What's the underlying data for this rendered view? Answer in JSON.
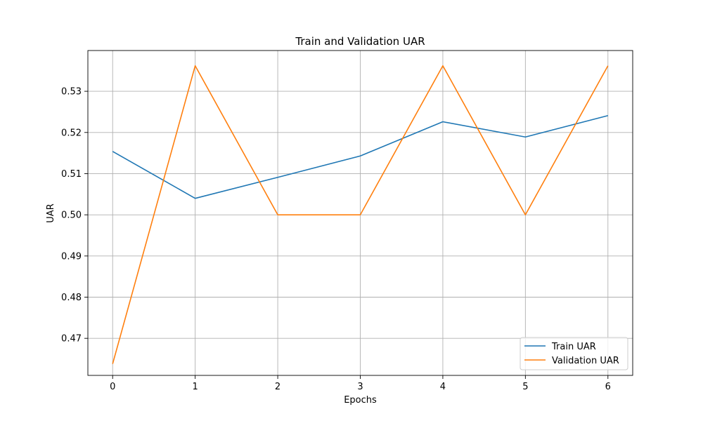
{
  "chart_data": {
    "type": "line",
    "title": "Train and Validation UAR",
    "xlabel": "Epochs",
    "ylabel": "UAR",
    "x": [
      0,
      1,
      2,
      3,
      4,
      5,
      6
    ],
    "xlim": [
      -0.3,
      6.3
    ],
    "ylim": [
      0.461,
      0.5399
    ],
    "xticks": [
      0,
      1,
      2,
      3,
      4,
      5,
      6
    ],
    "yticks": [
      0.47,
      0.48,
      0.49,
      0.5,
      0.51,
      0.52,
      0.53
    ],
    "ytick_labels": [
      "0.47",
      "0.48",
      "0.49",
      "0.50",
      "0.51",
      "0.52",
      "0.53"
    ],
    "grid": true,
    "legend_position": "lower-right",
    "series": [
      {
        "name": "Train UAR",
        "color": "#1f77b4",
        "values": [
          0.5154,
          0.504,
          0.5091,
          0.5143,
          0.5226,
          0.5189,
          0.5241
        ]
      },
      {
        "name": "Validation UAR",
        "color": "#ff7f0e",
        "values": [
          0.4638,
          0.5362,
          0.5,
          0.5,
          0.5362,
          0.5,
          0.5362
        ]
      }
    ]
  }
}
